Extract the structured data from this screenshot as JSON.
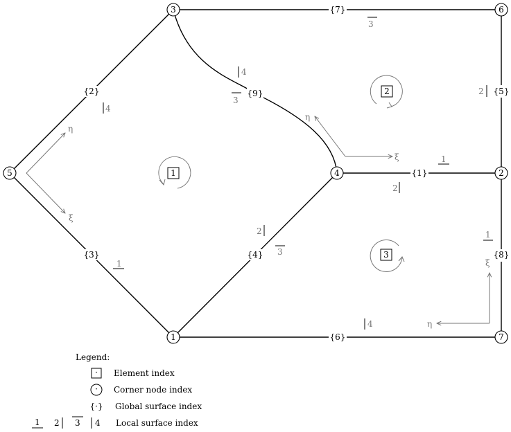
{
  "nodes": [
    {
      "id": "1"
    },
    {
      "id": "2"
    },
    {
      "id": "3"
    },
    {
      "id": "4"
    },
    {
      "id": "5"
    },
    {
      "id": "6"
    },
    {
      "id": "7"
    }
  ],
  "global_surfaces": [
    "{1}",
    "{2}",
    "{3}",
    "{4}",
    "{5}",
    "{6}",
    "{7}",
    "{8}",
    "{9}"
  ],
  "elements": [
    "1",
    "2",
    "3"
  ],
  "local_surface_labels": {
    "one": "1",
    "two": "2",
    "three": "3",
    "four": "4"
  },
  "axes": {
    "eta": "η",
    "xi": "ξ"
  },
  "legend": {
    "title": "Legend:",
    "element_symbol": "·",
    "element_label": "Element index",
    "node_symbol": "·",
    "node_label": "Corner node index",
    "surface_symbol": "{·}",
    "surface_label": "Global surface index",
    "local_label": "Local surface index"
  }
}
